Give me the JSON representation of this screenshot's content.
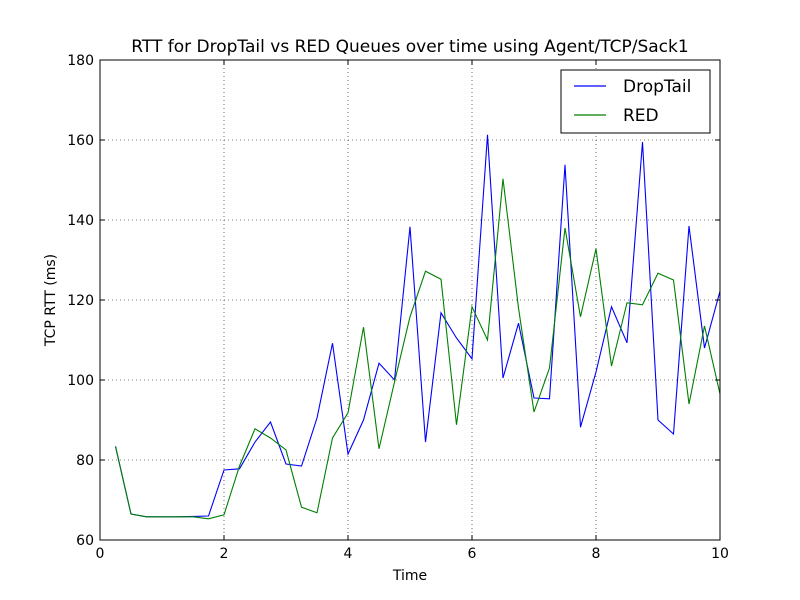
{
  "chart_data": {
    "type": "line",
    "title": "RTT for DropTail vs RED Queues over time using Agent/TCP/Sack1",
    "xlabel": "Time",
    "ylabel": "TCP RTT (ms)",
    "xlim": [
      0,
      10
    ],
    "ylim": [
      60,
      180
    ],
    "xticks": [
      "0",
      "2",
      "4",
      "6",
      "8",
      "10"
    ],
    "yticks": [
      "60",
      "80",
      "100",
      "120",
      "140",
      "160",
      "180"
    ],
    "grid": true,
    "legend_position": "top-right",
    "x": [
      0.25,
      0.5,
      0.75,
      1.0,
      1.25,
      1.5,
      1.75,
      2.0,
      2.25,
      2.5,
      2.75,
      3.0,
      3.25,
      3.5,
      3.75,
      4.0,
      4.25,
      4.5,
      4.75,
      5.0,
      5.25,
      5.5,
      5.75,
      6.0,
      6.25,
      6.5,
      6.75,
      7.0,
      7.25,
      7.5,
      7.75,
      8.0,
      8.25,
      8.5,
      8.75,
      9.0,
      9.25,
      9.5,
      9.75,
      10.0
    ],
    "series": [
      {
        "name": "DropTail",
        "color": "#0000ff",
        "values": [
          83.4,
          66.5,
          65.8,
          65.8,
          65.8,
          65.9,
          66.0,
          77.5,
          77.8,
          84.5,
          89.5,
          79.0,
          78.5,
          90.5,
          109.2,
          81.5,
          90.0,
          104.2,
          100.0,
          138.3,
          84.5,
          116.8,
          110.5,
          105.3,
          161.3,
          100.5,
          114.2,
          95.5,
          95.3,
          153.8,
          88.2,
          102.0,
          118.3,
          109.3,
          159.5,
          90.0,
          86.5,
          138.5,
          108.0,
          122.2
        ]
      },
      {
        "name": "RED",
        "color": "#008000",
        "values": [
          83.4,
          66.5,
          65.8,
          65.8,
          65.8,
          65.8,
          65.3,
          66.3,
          78.5,
          87.8,
          85.5,
          82.5,
          68.2,
          66.8,
          85.5,
          91.8,
          113.2,
          82.8,
          99.5,
          115.8,
          127.2,
          125.2,
          88.8,
          118.3,
          110.0,
          150.3,
          118.0,
          92.0,
          103.0,
          138.0,
          115.8,
          132.8,
          103.5,
          119.3,
          118.8,
          126.7,
          125.0,
          94.0,
          113.5,
          96.5
        ]
      }
    ]
  }
}
